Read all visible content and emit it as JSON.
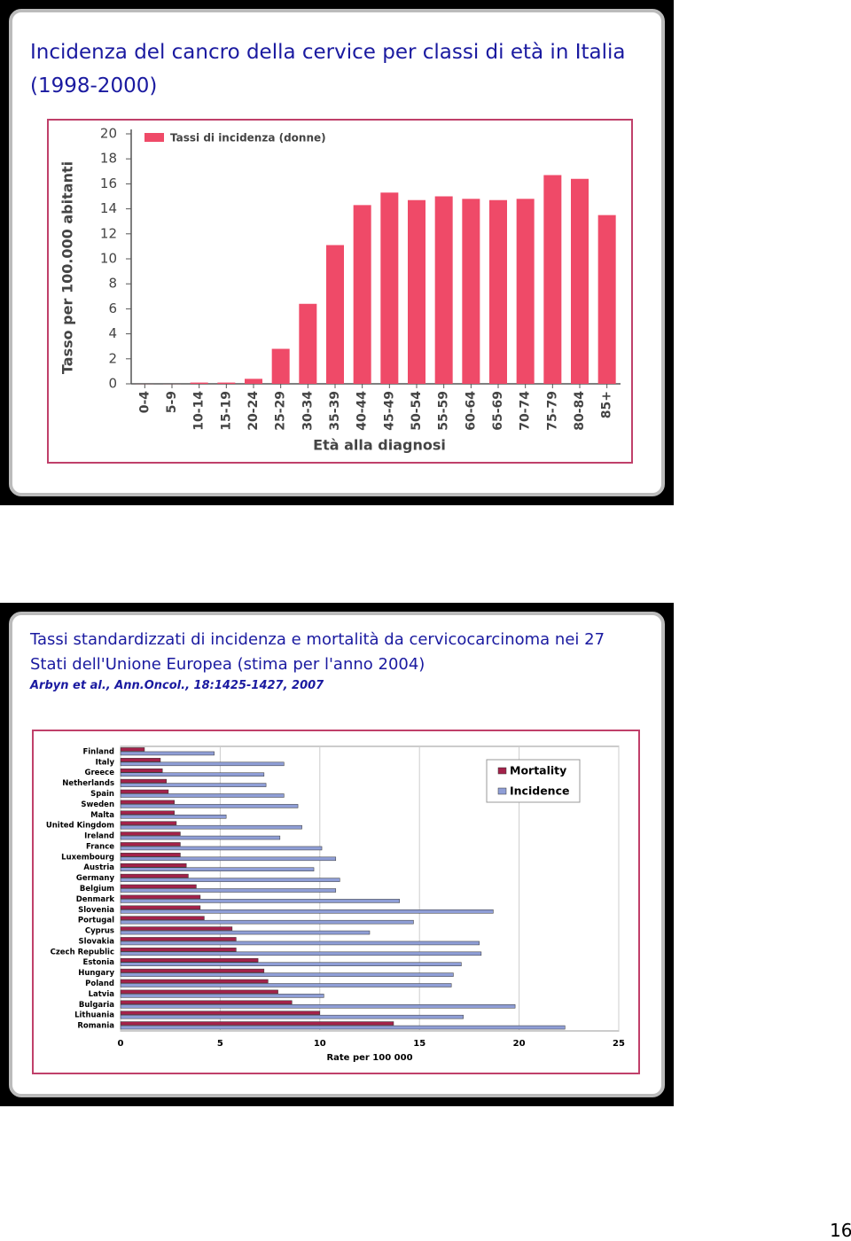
{
  "chart_data": [
    {
      "type": "bar",
      "title": "Incidenza del cancro della cervice per classi di età in Italia (1998-2000)",
      "xlabel": "Età alla diagnosi",
      "ylabel": "Tasso per 100.000 abitanti",
      "categories": [
        "0-4",
        "5-9",
        "10-14",
        "15-19",
        "20-24",
        "25-29",
        "30-34",
        "35-39",
        "40-44",
        "45-49",
        "50-54",
        "55-59",
        "60-64",
        "65-69",
        "70-74",
        "75-79",
        "80-84",
        "85+"
      ],
      "series": [
        {
          "name": "Tassi di incidenza (donne)",
          "color": "#ef4a68",
          "values": [
            0,
            0,
            0.1,
            0.1,
            0.4,
            2.8,
            6.4,
            11.1,
            14.3,
            15.3,
            14.7,
            15.0,
            14.8,
            14.7,
            14.8,
            16.7,
            16.4,
            13.5
          ]
        }
      ],
      "ylim": [
        0,
        20
      ],
      "yticks": [
        0,
        2,
        4,
        6,
        8,
        10,
        12,
        14,
        16,
        18,
        20
      ],
      "grid": false,
      "legend": "top left"
    },
    {
      "type": "barh",
      "title": "Tassi standardizzati di incidenza e mortalità da cervicocarcinoma nei 27 Stati dell'Unione Europea (stima per l'anno 2004)",
      "subtitle": "Arbyn et al., Ann.Oncol., 18:1425-1427, 2007",
      "xlabel": "Rate per 100 000",
      "categories": [
        "Finland",
        "Italy",
        "Greece",
        "Netherlands",
        "Spain",
        "Sweden",
        "Malta",
        "United Kingdom",
        "Ireland",
        "France",
        "Luxembourg",
        "Austria",
        "Germany",
        "Belgium",
        "Denmark",
        "Slovenia",
        "Portugal",
        "Cyprus",
        "Slovakia",
        "Czech Republic",
        "Estonia",
        "Hungary",
        "Poland",
        "Latvia",
        "Bulgaria",
        "Lithuania",
        "Romania"
      ],
      "series": [
        {
          "name": "Mortality",
          "color": "#a3224a",
          "values": [
            1.2,
            2.0,
            2.1,
            2.3,
            2.4,
            2.7,
            2.7,
            2.8,
            3.0,
            3.0,
            3.0,
            3.3,
            3.4,
            3.8,
            4.0,
            4.0,
            4.2,
            5.6,
            5.8,
            5.8,
            6.9,
            7.2,
            7.4,
            7.9,
            8.6,
            10.0,
            13.7
          ]
        },
        {
          "name": "Incidence",
          "color": "#8f9ed6",
          "values": [
            4.7,
            8.2,
            7.2,
            7.3,
            8.2,
            8.9,
            5.3,
            9.1,
            8.0,
            10.1,
            10.8,
            9.7,
            11.0,
            10.8,
            14.0,
            18.7,
            14.7,
            12.5,
            18.0,
            18.1,
            17.1,
            16.7,
            16.6,
            10.2,
            19.8,
            17.2,
            22.3
          ]
        }
      ],
      "xlim": [
        0,
        25
      ],
      "xticks": [
        0,
        5,
        10,
        15,
        20,
        25
      ],
      "grid": true,
      "legend": "top right"
    }
  ],
  "page_number": "16"
}
